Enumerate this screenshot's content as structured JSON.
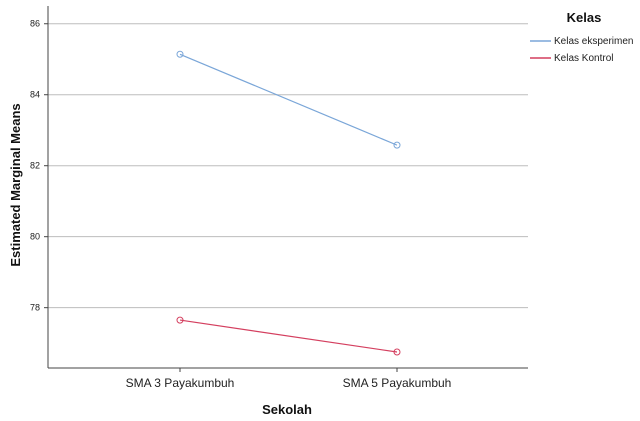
{
  "chart_data": {
    "type": "line",
    "xlabel": "Sekolah",
    "ylabel": "Estimated Marginal Means",
    "categories": [
      "SMA 3 Payakumbuh",
      "SMA 5 Payakumbuh"
    ],
    "ylim": [
      76.3,
      86.5
    ],
    "yticks": [
      78,
      80,
      82,
      84,
      86
    ],
    "grid": true,
    "legend": {
      "title": "Kelas",
      "placement": "top-right"
    },
    "series": [
      {
        "name": "Kelas eksperimen",
        "values": [
          85.14,
          82.58
        ],
        "color": "#7aa6d8"
      },
      {
        "name": "Kelas Kontrol",
        "values": [
          77.65,
          76.75
        ],
        "color": "#d43f5f"
      }
    ]
  }
}
